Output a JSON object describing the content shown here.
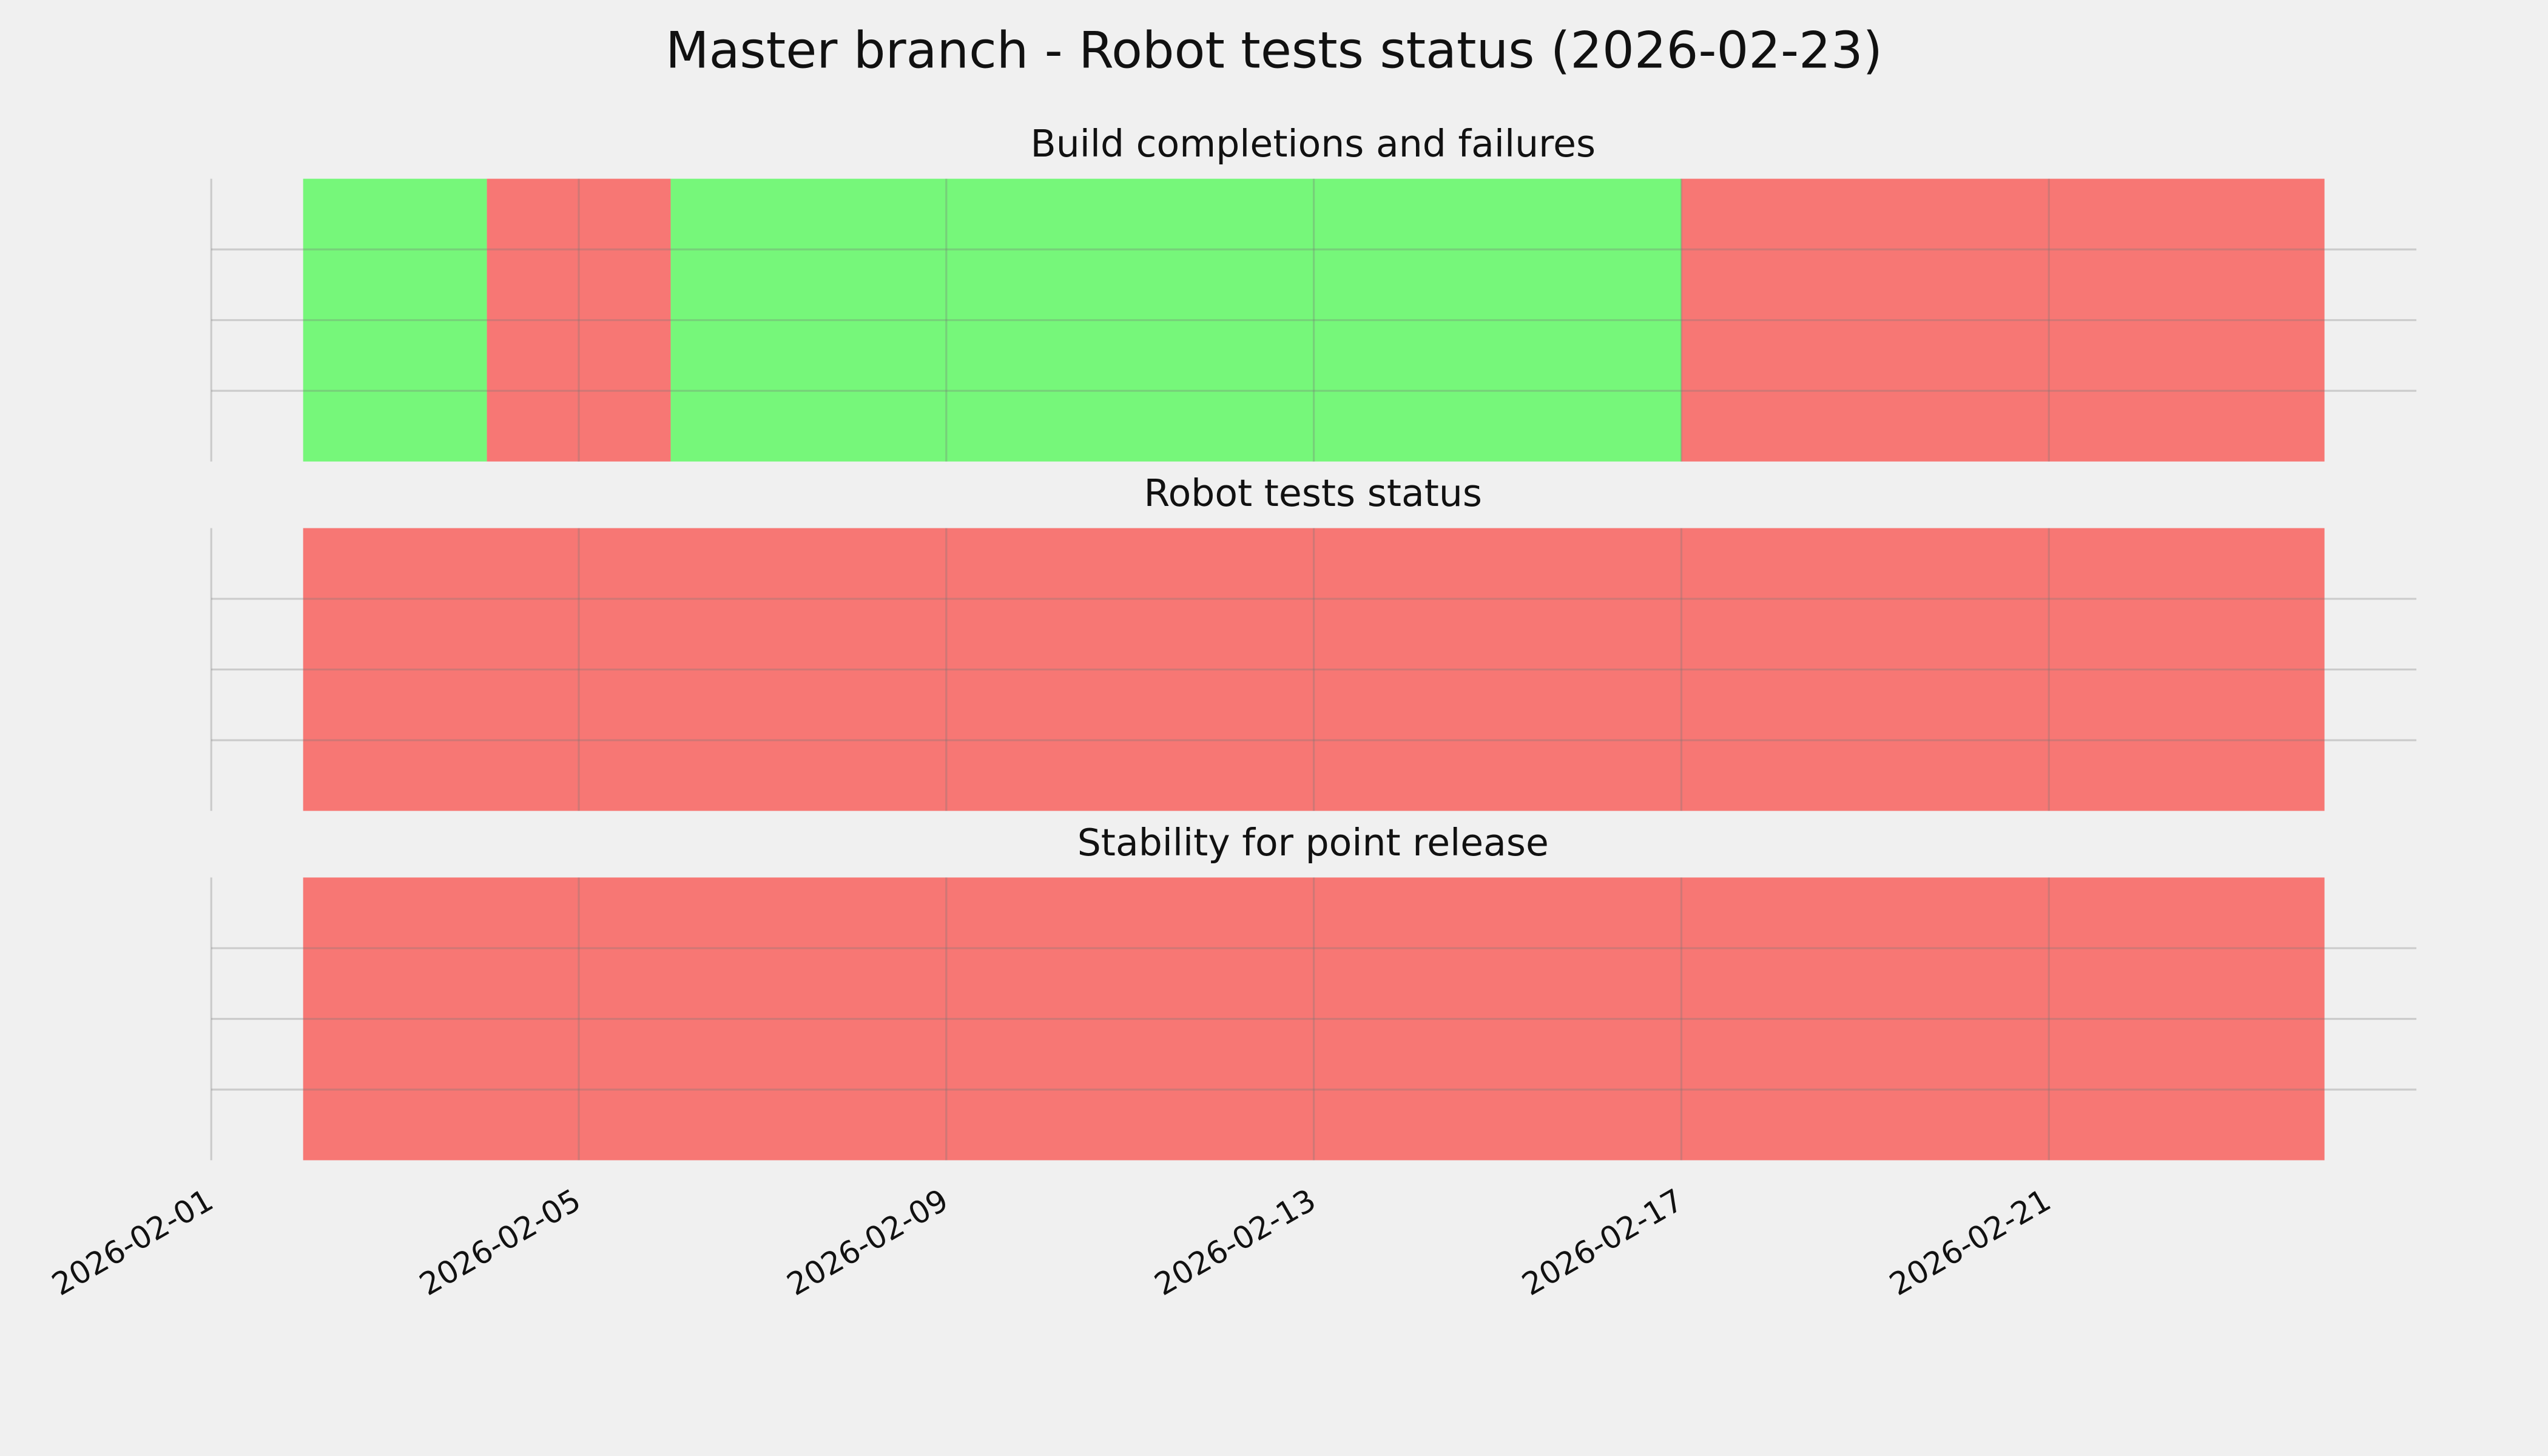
{
  "title": "Master branch - Robot tests status (2026-02-23)",
  "chart_data": [
    {
      "type": "timeline",
      "title": "Build completions and failures",
      "spans": [
        {
          "start": "2026-02-02",
          "end": "2026-02-04",
          "color": "#76f77a"
        },
        {
          "start": "2026-02-04",
          "end": "2026-02-06",
          "color": "#f77774"
        },
        {
          "start": "2026-02-06",
          "end": "2026-02-17",
          "color": "#76f77a"
        },
        {
          "start": "2026-02-17",
          "end": "2026-02-24",
          "color": "#f77774"
        }
      ],
      "xlim": [
        "2026-02-01",
        "2026-02-25"
      ],
      "xticks": [
        "2026-02-01",
        "2026-02-05",
        "2026-02-09",
        "2026-02-13",
        "2026-02-17",
        "2026-02-21"
      ],
      "ylim": [
        0,
        1
      ],
      "yticks": [
        0.25,
        0.5,
        0.75
      ],
      "grid": true
    },
    {
      "type": "timeline",
      "title": "Robot tests status",
      "spans": [
        {
          "start": "2026-02-02",
          "end": "2026-02-24",
          "color": "#f77774"
        }
      ],
      "xlim": [
        "2026-02-01",
        "2026-02-25"
      ],
      "xticks": [
        "2026-02-01",
        "2026-02-05",
        "2026-02-09",
        "2026-02-13",
        "2026-02-17",
        "2026-02-21"
      ],
      "ylim": [
        0,
        1
      ],
      "yticks": [
        0.25,
        0.5,
        0.75
      ],
      "grid": true
    },
    {
      "type": "timeline",
      "title": "Stability for point release",
      "spans": [
        {
          "start": "2026-02-02",
          "end": "2026-02-24",
          "color": "#f77774"
        }
      ],
      "xlim": [
        "2026-02-01",
        "2026-02-25"
      ],
      "xticks": [
        "2026-02-01",
        "2026-02-05",
        "2026-02-09",
        "2026-02-13",
        "2026-02-17",
        "2026-02-21"
      ],
      "ylim": [
        0,
        1
      ],
      "yticks": [
        0.25,
        0.5,
        0.75
      ],
      "grid": true
    }
  ]
}
